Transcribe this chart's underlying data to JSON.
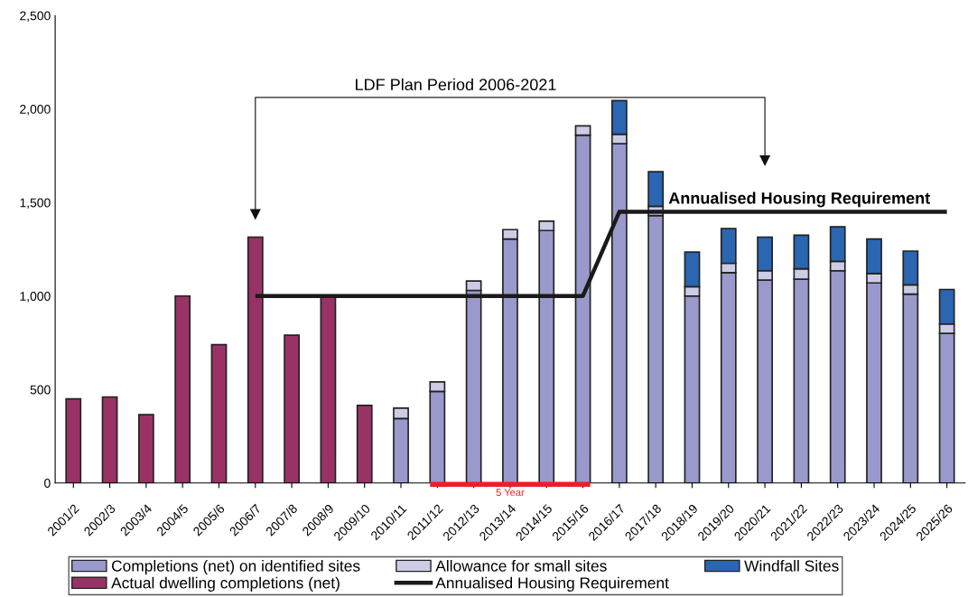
{
  "chart_data": {
    "type": "bar",
    "stacked": true,
    "categories": [
      "2001/2",
      "2002/3",
      "2003/4",
      "2004/5",
      "2005/6",
      "2006/7",
      "2007/8",
      "2008/9",
      "2009/10",
      "2010/11",
      "2011/12",
      "2012/13",
      "2013/14",
      "2014/15",
      "2015/16",
      "2016/17",
      "2017/18",
      "2018/19",
      "2019/20",
      "2020/21",
      "2021/22",
      "2022/23",
      "2023/24",
      "2024/25",
      "2025/26"
    ],
    "series": [
      {
        "name": "Completions (net) on identified sites",
        "color": "#9999cc",
        "values": [
          null,
          null,
          null,
          null,
          null,
          null,
          null,
          null,
          null,
          345,
          490,
          1030,
          1305,
          1350,
          1860,
          1815,
          1430,
          1000,
          1125,
          1085,
          1090,
          1135,
          1070,
          1010,
          800
        ]
      },
      {
        "name": "Allowance for small sites",
        "color": "#cccce6",
        "values": [
          null,
          null,
          null,
          null,
          null,
          null,
          null,
          null,
          null,
          55,
          50,
          50,
          50,
          50,
          50,
          50,
          50,
          50,
          50,
          50,
          55,
          50,
          50,
          50,
          50
        ]
      },
      {
        "name": "Windfall Sites",
        "color": "#2a66b2",
        "values": [
          null,
          null,
          null,
          null,
          null,
          null,
          null,
          null,
          null,
          null,
          null,
          null,
          null,
          null,
          null,
          180,
          185,
          185,
          185,
          180,
          180,
          185,
          185,
          180,
          185
        ]
      },
      {
        "name": "Actual dwelling completions (net)",
        "color": "#993366",
        "values": [
          450,
          460,
          365,
          1000,
          740,
          1315,
          790,
          1000,
          415,
          null,
          null,
          null,
          null,
          null,
          null,
          null,
          null,
          null,
          null,
          null,
          null,
          null,
          null,
          null,
          null
        ]
      },
      {
        "name": "Annualised Housing Requirement",
        "type": "line",
        "color": "#1a1a1a",
        "values": [
          null,
          null,
          null,
          null,
          null,
          1000,
          1000,
          1000,
          1000,
          1000,
          1000,
          1000,
          1000,
          1000,
          1000,
          1450,
          1450,
          1450,
          1450,
          1450,
          1450,
          1450,
          1450,
          1450,
          1450
        ]
      }
    ],
    "ylim": [
      0,
      2500
    ],
    "yticks": [
      0,
      500,
      {
        "value": 1000,
        "label": "1,000"
      },
      {
        "value": 1500,
        "label": "1,500"
      },
      {
        "value": 2000,
        "label": "2,000"
      },
      {
        "value": 2500,
        "label": "2,500"
      }
    ],
    "annotations": [
      {
        "text": "Annualised Housing Requirement",
        "x": "2017/18",
        "y": 1450
      },
      {
        "text": "5 Year",
        "x": "2013/14",
        "y": 0
      },
      "LDF Plan Period 2006-2021"
    ],
    "legend": "bottom",
    "grid": false
  }
}
